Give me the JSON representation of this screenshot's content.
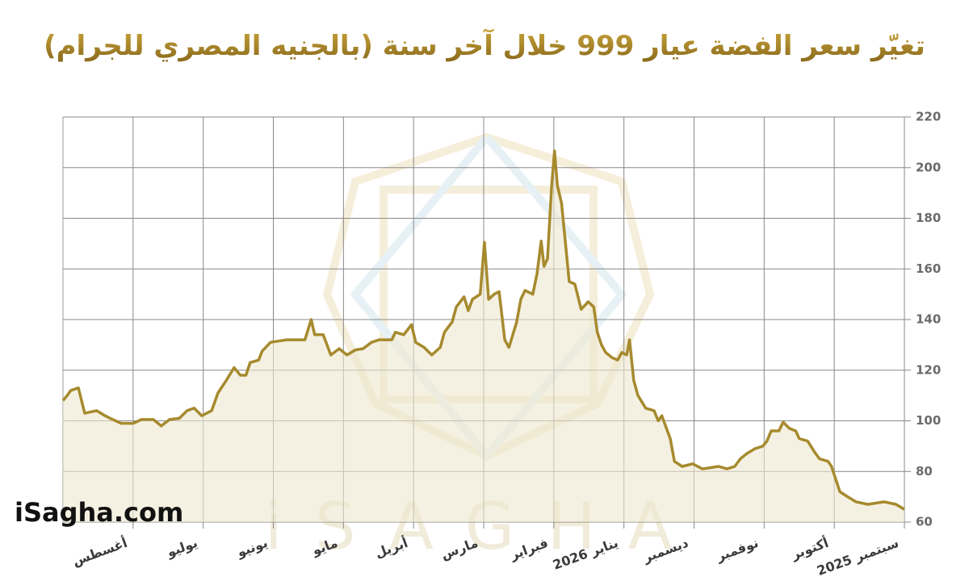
{
  "chart_data": {
    "type": "line",
    "title": "تغيّر سعر الفضة عيار 999 خلال آخر سنة (بالجنيه المصري للجرام)",
    "brand": "iSagha.com",
    "watermark": "iSAGHA",
    "x": [
      0,
      0.12,
      0.29,
      0.52,
      0.69,
      0.81,
      0.92,
      0.98,
      1.04,
      1.09,
      1.21,
      1.29,
      1.38,
      1.5,
      1.55,
      1.64,
      1.73,
      1.79,
      1.9,
      1.96,
      2.02,
      2.13,
      2.25,
      2.34,
      2.42,
      2.53,
      2.65,
      2.76,
      2.88,
      3.02,
      3.17,
      3.28,
      3.34,
      3.46,
      3.51,
      3.57,
      3.69,
      3.8,
      3.86,
      3.92,
      3.96,
      4.03,
      4.09,
      4.17,
      4.26,
      4.32,
      4.38,
      4.43,
      4.51,
      4.61,
      4.7,
      4.78,
      4.84,
      4.89,
      4.95,
      4.99,
      5.03,
      5.09,
      5.14,
      5.18,
      5.24,
      5.3,
      5.41,
      5.47,
      5.53,
      5.64,
      5.7,
      5.78,
      5.85,
      5.93,
      5.99,
      6.05,
      6.16,
      6.22,
      6.28,
      6.39,
      6.45,
      6.56,
      6.62,
      6.74,
      6.85,
      6.97,
      7.03,
      7.14,
      7.26,
      7.31,
      7.49,
      7.6,
      7.72,
      7.83,
      7.95,
      8.06,
      8.18,
      8.29,
      8.41,
      8.46,
      8.55,
      8.64,
      8.81,
      8.93,
      9.04,
      9.16,
      9.21,
      9.33,
      9.39,
      9.47,
      9.56,
      9.67,
      9.79,
      9.88,
      10.02,
      10.13,
      10.23,
      10.34,
      10.48,
      10.6,
      10.71,
      10.88,
      11,
      11.17,
      11.29,
      11.4,
      11.52,
      11.69,
      11.78,
      11.89,
      11.94,
      12
    ],
    "series": [
      {
        "name": "سعر الفضة عيار 999",
        "color": "#a68a2e",
        "values": [
          65,
          67,
          68,
          67,
          68,
          70,
          72,
          77,
          82,
          84,
          85,
          88,
          92,
          93,
          96,
          97,
          99.5,
          96,
          96,
          92,
          90,
          89,
          87,
          85,
          82,
          81,
          82,
          81.5,
          81,
          83,
          82,
          84,
          93,
          102,
          100,
          104,
          105,
          110,
          116,
          132,
          126,
          127,
          124,
          125,
          127,
          130,
          135,
          145,
          147,
          144,
          154,
          155,
          172,
          186,
          193,
          206.6,
          193,
          164,
          161,
          171,
          158,
          150,
          151.5,
          148,
          139,
          129,
          132,
          151,
          150,
          148,
          170.5,
          150,
          148,
          143.5,
          149,
          145,
          139,
          135,
          129,
          126,
          129,
          131,
          138,
          134,
          135,
          132,
          132,
          131,
          128.5,
          128,
          126,
          128.5,
          126,
          134,
          134,
          140,
          132,
          132,
          132,
          131.5,
          131,
          127.5,
          124,
          123,
          118,
          118,
          121,
          116,
          111,
          104,
          102,
          105,
          104,
          101,
          100.5,
          98,
          100.5,
          100.5,
          99,
          99,
          100.5,
          102,
          104,
          103,
          113,
          112,
          110,
          108
        ]
      }
    ],
    "xlim": [
      12,
      0
    ],
    "xticks": [
      {
        "value": 0,
        "label": "سبتمبر 2025"
      },
      {
        "value": 1,
        "label": "أكتوبر"
      },
      {
        "value": 2,
        "label": "نوفمبر"
      },
      {
        "value": 3,
        "label": "ديسمبر"
      },
      {
        "value": 4,
        "label": "يناير 2026"
      },
      {
        "value": 5,
        "label": "فبراير"
      },
      {
        "value": 6,
        "label": "مارس"
      },
      {
        "value": 7,
        "label": "أبريل"
      },
      {
        "value": 8,
        "label": "مايو"
      },
      {
        "value": 9,
        "label": "يونيو"
      },
      {
        "value": 10,
        "label": "يوليو"
      },
      {
        "value": 11,
        "label": "أغسطس"
      }
    ],
    "ylim": [
      60,
      220
    ],
    "yticks": [
      60,
      80,
      100,
      120,
      140,
      160,
      180,
      200,
      220
    ],
    "grid": true,
    "fill": "#efe7cf"
  }
}
